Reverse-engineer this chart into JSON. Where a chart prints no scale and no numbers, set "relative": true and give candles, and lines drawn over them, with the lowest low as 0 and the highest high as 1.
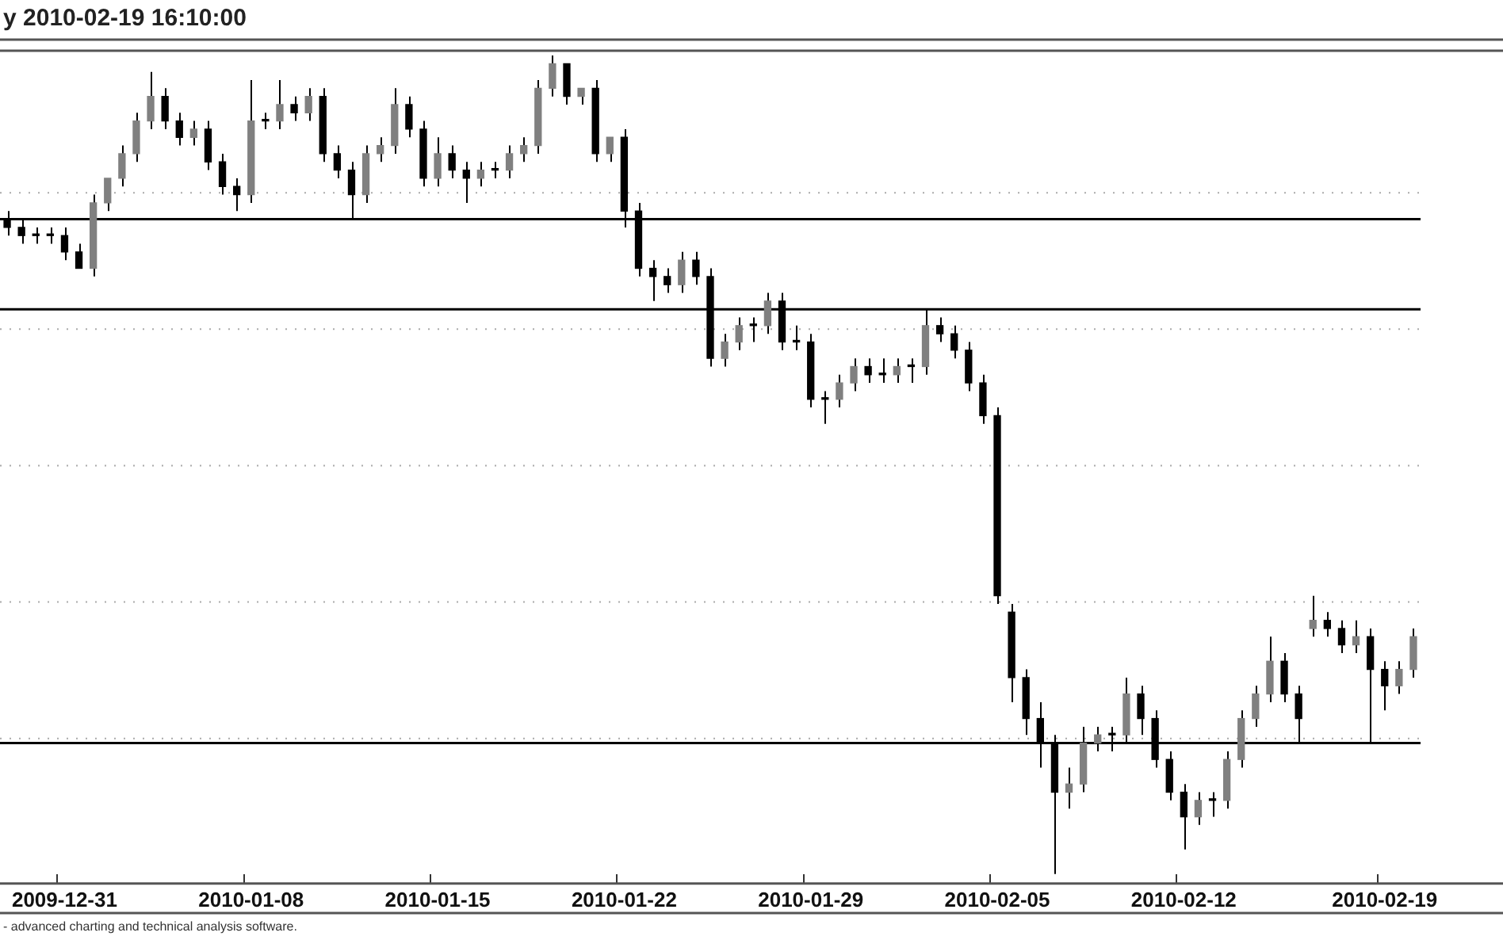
{
  "chart_data": {
    "type": "candlestick",
    "title": "y 2010-02-19 16:10:00",
    "relative": true,
    "color": "#000000",
    "colors": [
      "#000000",
      "#000000",
      "#000000",
      "#000000",
      "#000000",
      "#000000",
      "#808080",
      "#808080",
      "#808080",
      "#808080",
      "#808080",
      "#000000",
      "#000000",
      "#808080",
      "#000000",
      "#000000",
      "#000000",
      "#808080",
      "#000000",
      "#808080",
      "#000000",
      "#808080",
      "#000000",
      "#000000",
      "#000000",
      "#808080",
      "#808080",
      "#808080",
      "#000000",
      "#000000",
      "#808080",
      "#000000",
      "#000000",
      "#808080",
      "#000000",
      "#808080",
      "#808080",
      "#808080",
      "#808080",
      "#000000",
      "#808080",
      "#000000",
      "#808080",
      "#000000",
      "#000000",
      "#000000",
      "#000000",
      "#808080",
      "#000000",
      "#000000",
      "#808080",
      "#808080",
      "#000000",
      "#808080",
      "#000000",
      "#000000",
      "#000000",
      "#000000",
      "#808080",
      "#808080",
      "#000000",
      "#000000",
      "#808080",
      "#000000",
      "#808080",
      "#000000",
      "#000000",
      "#000000",
      "#000000",
      "#000000",
      "#000000",
      "#000000",
      "#000000",
      "#000000",
      "#808080",
      "#808080",
      "#808080",
      "#000000",
      "#808080",
      "#000000",
      "#000000",
      "#000000",
      "#000000",
      "#808080",
      "#000000",
      "#808080",
      "#808080",
      "#808080",
      "#808080",
      "#000000",
      "#000000",
      "#808080",
      "#000000",
      "#000000",
      "#808080",
      "#000000",
      "#000000",
      "#808080",
      "#808080"
    ],
    "grid": true,
    "legend": false,
    "categories": [
      null,
      null,
      null,
      null,
      "2009-12-31",
      null,
      null,
      null,
      null,
      null,
      null,
      null,
      null,
      null,
      null,
      null,
      null,
      "2010-01-08",
      null,
      null,
      null,
      null,
      null,
      null,
      null,
      null,
      null,
      null,
      null,
      null,
      "2010-01-15",
      null,
      null,
      null,
      null,
      null,
      null,
      null,
      null,
      null,
      null,
      null,
      null,
      "2010-01-22",
      null,
      null,
      null,
      null,
      null,
      null,
      null,
      null,
      null,
      null,
      null,
      null,
      "2010-01-29",
      null,
      null,
      null,
      null,
      null,
      null,
      null,
      null,
      null,
      null,
      null,
      null,
      "2010-02-05",
      null,
      null,
      null,
      null,
      null,
      null,
      null,
      null,
      null,
      null,
      null,
      null,
      "2010-02-12",
      null,
      null,
      null,
      null,
      null,
      null,
      null,
      null,
      null,
      null,
      null,
      null,
      null,
      "2010-02-19",
      null,
      null
    ],
    "ohlc": [
      [
        0.8,
        0.81,
        0.78,
        0.79
      ],
      [
        0.79,
        0.8,
        0.77,
        0.78
      ],
      [
        0.78,
        0.79,
        0.77,
        0.78
      ],
      [
        0.78,
        0.79,
        0.77,
        0.78
      ],
      [
        0.78,
        0.79,
        0.75,
        0.76
      ],
      [
        0.76,
        0.77,
        0.74,
        0.74
      ],
      [
        0.74,
        0.83,
        0.73,
        0.82
      ],
      [
        0.82,
        0.85,
        0.81,
        0.85
      ],
      [
        0.85,
        0.89,
        0.84,
        0.88
      ],
      [
        0.88,
        0.93,
        0.87,
        0.92
      ],
      [
        0.92,
        0.98,
        0.91,
        0.95
      ],
      [
        0.95,
        0.96,
        0.91,
        0.92
      ],
      [
        0.92,
        0.93,
        0.89,
        0.9
      ],
      [
        0.9,
        0.92,
        0.89,
        0.91
      ],
      [
        0.91,
        0.92,
        0.86,
        0.87
      ],
      [
        0.87,
        0.88,
        0.83,
        0.84
      ],
      [
        0.84,
        0.85,
        0.81,
        0.83
      ],
      [
        0.83,
        0.97,
        0.82,
        0.92
      ],
      [
        0.92,
        0.93,
        0.91,
        0.92
      ],
      [
        0.92,
        0.97,
        0.91,
        0.94
      ],
      [
        0.94,
        0.95,
        0.92,
        0.93
      ],
      [
        0.93,
        0.96,
        0.92,
        0.95
      ],
      [
        0.95,
        0.96,
        0.87,
        0.88
      ],
      [
        0.88,
        0.89,
        0.85,
        0.86
      ],
      [
        0.86,
        0.87,
        0.8,
        0.83
      ],
      [
        0.83,
        0.89,
        0.82,
        0.88
      ],
      [
        0.88,
        0.9,
        0.87,
        0.89
      ],
      [
        0.89,
        0.96,
        0.88,
        0.94
      ],
      [
        0.94,
        0.95,
        0.9,
        0.91
      ],
      [
        0.91,
        0.92,
        0.84,
        0.85
      ],
      [
        0.85,
        0.9,
        0.84,
        0.88
      ],
      [
        0.88,
        0.89,
        0.85,
        0.86
      ],
      [
        0.86,
        0.87,
        0.82,
        0.85
      ],
      [
        0.85,
        0.87,
        0.84,
        0.86
      ],
      [
        0.86,
        0.87,
        0.85,
        0.86
      ],
      [
        0.86,
        0.89,
        0.85,
        0.88
      ],
      [
        0.88,
        0.9,
        0.87,
        0.89
      ],
      [
        0.89,
        0.97,
        0.88,
        0.96
      ],
      [
        0.96,
        1.0,
        0.95,
        0.99
      ],
      [
        0.99,
        0.99,
        0.94,
        0.95
      ],
      [
        0.95,
        0.96,
        0.94,
        0.96
      ],
      [
        0.96,
        0.97,
        0.87,
        0.88
      ],
      [
        0.88,
        0.9,
        0.87,
        0.9
      ],
      [
        0.9,
        0.91,
        0.79,
        0.81
      ],
      [
        0.81,
        0.82,
        0.73,
        0.74
      ],
      [
        0.74,
        0.75,
        0.7,
        0.73
      ],
      [
        0.73,
        0.74,
        0.71,
        0.72
      ],
      [
        0.72,
        0.76,
        0.71,
        0.75
      ],
      [
        0.75,
        0.76,
        0.72,
        0.73
      ],
      [
        0.73,
        0.74,
        0.62,
        0.63
      ],
      [
        0.63,
        0.66,
        0.62,
        0.65
      ],
      [
        0.65,
        0.68,
        0.64,
        0.67
      ],
      [
        0.67,
        0.68,
        0.65,
        0.67
      ],
      [
        0.67,
        0.71,
        0.66,
        0.7
      ],
      [
        0.7,
        0.71,
        0.64,
        0.65
      ],
      [
        0.65,
        0.67,
        0.64,
        0.65
      ],
      [
        0.65,
        0.66,
        0.57,
        0.58
      ],
      [
        0.58,
        0.59,
        0.55,
        0.58
      ],
      [
        0.58,
        0.61,
        0.57,
        0.6
      ],
      [
        0.6,
        0.63,
        0.59,
        0.62
      ],
      [
        0.62,
        0.63,
        0.6,
        0.61
      ],
      [
        0.61,
        0.63,
        0.6,
        0.61
      ],
      [
        0.61,
        0.63,
        0.6,
        0.62
      ],
      [
        0.62,
        0.63,
        0.6,
        0.62
      ],
      [
        0.62,
        0.69,
        0.61,
        0.67
      ],
      [
        0.67,
        0.68,
        0.65,
        0.66
      ],
      [
        0.66,
        0.67,
        0.63,
        0.64
      ],
      [
        0.64,
        0.65,
        0.59,
        0.6
      ],
      [
        0.6,
        0.61,
        0.55,
        0.56
      ],
      [
        0.56,
        0.57,
        0.33,
        0.34
      ],
      [
        0.32,
        0.33,
        0.21,
        0.24
      ],
      [
        0.24,
        0.25,
        0.17,
        0.19
      ],
      [
        0.19,
        0.21,
        0.13,
        0.16
      ],
      [
        0.16,
        0.17,
        0.0,
        0.1
      ],
      [
        0.1,
        0.13,
        0.08,
        0.11
      ],
      [
        0.11,
        0.18,
        0.1,
        0.16
      ],
      [
        0.16,
        0.18,
        0.15,
        0.17
      ],
      [
        0.17,
        0.18,
        0.15,
        0.17
      ],
      [
        0.17,
        0.24,
        0.16,
        0.22
      ],
      [
        0.22,
        0.23,
        0.17,
        0.19
      ],
      [
        0.19,
        0.2,
        0.13,
        0.14
      ],
      [
        0.14,
        0.15,
        0.09,
        0.1
      ],
      [
        0.1,
        0.11,
        0.03,
        0.07
      ],
      [
        0.07,
        0.1,
        0.06,
        0.09
      ],
      [
        0.09,
        0.1,
        0.07,
        0.09
      ],
      [
        0.09,
        0.15,
        0.08,
        0.14
      ],
      [
        0.14,
        0.2,
        0.13,
        0.19
      ],
      [
        0.19,
        0.23,
        0.18,
        0.22
      ],
      [
        0.22,
        0.29,
        0.21,
        0.26
      ],
      [
        0.26,
        0.27,
        0.21,
        0.22
      ],
      [
        0.22,
        0.23,
        0.16,
        0.19
      ],
      [
        0.3,
        0.34,
        0.29,
        0.31
      ],
      [
        0.31,
        0.32,
        0.29,
        0.3
      ],
      [
        0.3,
        0.31,
        0.27,
        0.28
      ],
      [
        0.28,
        0.31,
        0.27,
        0.29
      ],
      [
        0.29,
        0.3,
        0.16,
        0.25
      ],
      [
        0.25,
        0.26,
        0.2,
        0.23
      ],
      [
        0.23,
        0.26,
        0.22,
        0.25
      ],
      [
        0.25,
        0.3,
        0.24,
        0.29
      ]
    ],
    "ref_lines": [
      {
        "axis": "y",
        "value": 0.8,
        "color": "#000000"
      },
      {
        "axis": "y",
        "value": 0.69,
        "color": "#000000"
      },
      {
        "axis": "y",
        "value": 0.16,
        "color": "#000000"
      }
    ],
    "annotations": [
      "- advanced charting and technical analysis software."
    ]
  }
}
